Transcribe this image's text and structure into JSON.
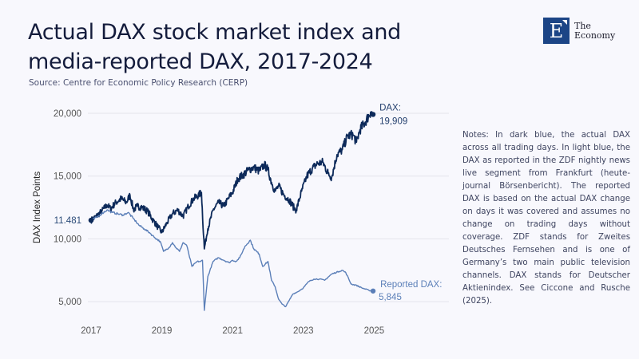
{
  "header": {
    "title": "Actual DAX stock market index and media-reported DAX, 2017-2024",
    "source": "Source: Centre for Economic Policy Research (CERP)"
  },
  "logo": {
    "letter": "E",
    "line1": "The",
    "line2": "Economy"
  },
  "notes": "Notes: In dark blue, the actual DAX across all trading days. In light blue, the DAX as reported in the ZDF nightly news live segment from Frankfurt (heute-journal Börsenbericht). The reported DAX is based on the actual DAX change on days it was covered and assumes no change on trading days without coverage. ZDF stands for Zweites Deutsches Fernsehen and is one of Germany’s two main public television channels. DAX stands for Deutscher Aktienindex. See Ciccone and Rusche (2025).",
  "colors": {
    "actual": "#0d2a5a",
    "reported": "#5b7fb8",
    "grid": "#e4e4ec",
    "tick": "#555555"
  },
  "chart_data": {
    "type": "line",
    "title": "Actual DAX stock market index and media-reported DAX, 2017-2024",
    "xlabel": "",
    "ylabel": "DAX Index Points",
    "xlim": [
      2017,
      2025.3
    ],
    "ylim": [
      3500,
      20800
    ],
    "x_ticks": [
      "2017",
      "2019",
      "2021",
      "2023",
      "2025"
    ],
    "y_ticks": [
      {
        "value": 5000,
        "label": "5,000"
      },
      {
        "value": 10000,
        "label": "10,000"
      },
      {
        "value": 15000,
        "label": "15,000"
      },
      {
        "value": 20000,
        "label": "20,000"
      }
    ],
    "grid": true,
    "start_label": "11.481",
    "start_value": 11481,
    "annotations": [
      {
        "series": "Actual DAX",
        "line1": "DAX:",
        "line2": "19,909"
      },
      {
        "series": "Reported DAX",
        "line1": "Reported DAX:",
        "line2": "5,845"
      }
    ],
    "series": [
      {
        "name": "Actual DAX",
        "x": [
          2017.0,
          2017.15,
          2017.3,
          2017.45,
          2017.55,
          2017.7,
          2017.85,
          2018.0,
          2018.1,
          2018.2,
          2018.3,
          2018.45,
          2018.6,
          2018.75,
          2018.9,
          2019.0,
          2019.15,
          2019.3,
          2019.45,
          2019.6,
          2019.75,
          2019.9,
          2020.05,
          2020.12,
          2020.2,
          2020.3,
          2020.45,
          2020.6,
          2020.75,
          2020.9,
          2021.0,
          2021.15,
          2021.3,
          2021.45,
          2021.6,
          2021.75,
          2021.9,
          2022.0,
          2022.1,
          2022.2,
          2022.3,
          2022.45,
          2022.6,
          2022.75,
          2022.8,
          2022.95,
          2023.1,
          2023.25,
          2023.4,
          2023.55,
          2023.7,
          2023.8,
          2023.95,
          2024.1,
          2024.25,
          2024.4,
          2024.5,
          2024.6,
          2024.75,
          2024.9,
          2024.97
        ],
        "values": [
          11481,
          11800,
          12200,
          12700,
          12400,
          12900,
          13200,
          12900,
          13500,
          12300,
          12600,
          12500,
          12200,
          11500,
          10900,
          10500,
          11300,
          12000,
          12300,
          11800,
          12600,
          13200,
          13500,
          13700,
          9200,
          10800,
          12300,
          12900,
          12600,
          13300,
          13700,
          14800,
          15100,
          15500,
          15700,
          15400,
          15900,
          15500,
          14500,
          13800,
          14200,
          13500,
          13100,
          12400,
          12300,
          13800,
          15000,
          15600,
          16000,
          16100,
          15200,
          14900,
          16700,
          17100,
          18200,
          18300,
          17700,
          18700,
          19300,
          20100,
          19909
        ]
      },
      {
        "name": "Reported DAX",
        "x": [
          2017.0,
          2017.15,
          2017.3,
          2017.45,
          2017.6,
          2017.75,
          2017.9,
          2018.05,
          2018.2,
          2018.35,
          2018.5,
          2018.65,
          2018.8,
          2018.95,
          2019.05,
          2019.2,
          2019.3,
          2019.4,
          2019.5,
          2019.6,
          2019.7,
          2019.85,
          2020.0,
          2020.1,
          2020.15,
          2020.2,
          2020.3,
          2020.45,
          2020.6,
          2020.75,
          2020.9,
          2021.0,
          2021.1,
          2021.2,
          2021.35,
          2021.5,
          2021.6,
          2021.75,
          2021.85,
          2022.0,
          2022.1,
          2022.2,
          2022.3,
          2022.4,
          2022.5,
          2022.6,
          2022.7,
          2022.85,
          2023.0,
          2023.15,
          2023.3,
          2023.45,
          2023.6,
          2023.8,
          2024.0,
          2024.1,
          2024.2,
          2024.35,
          2024.5,
          2024.65,
          2024.85,
          2024.97
        ],
        "values": [
          11481,
          11700,
          12000,
          12300,
          12100,
          12000,
          11900,
          12100,
          11600,
          11100,
          10800,
          10500,
          10100,
          9800,
          9000,
          9300,
          9700,
          9300,
          9000,
          9700,
          9500,
          7800,
          8200,
          8200,
          8300,
          4300,
          7000,
          8200,
          8500,
          8300,
          8100,
          8300,
          8200,
          8500,
          9400,
          9900,
          9200,
          8800,
          7800,
          8200,
          6700,
          6200,
          5200,
          4800,
          4600,
          5100,
          5600,
          5800,
          6100,
          6600,
          6800,
          6800,
          6700,
          7200,
          7400,
          7500,
          7300,
          6400,
          6300,
          6100,
          5900,
          5845
        ]
      }
    ]
  }
}
